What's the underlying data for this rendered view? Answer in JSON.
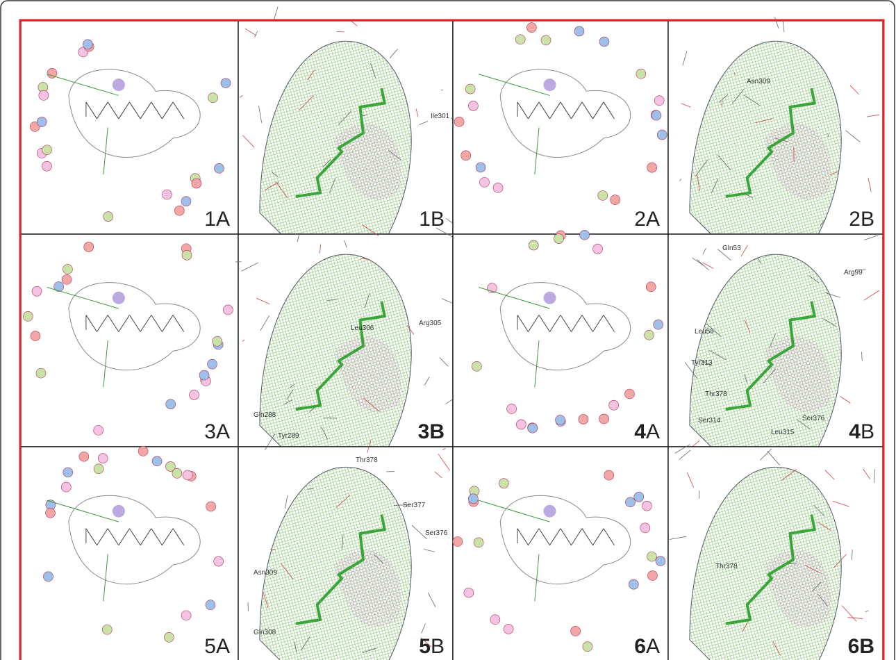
{
  "panels": [
    {
      "number": "1",
      "letter": "A"
    },
    {
      "number": "1",
      "letter": "B",
      "residues": [
        "Ile301"
      ]
    },
    {
      "number": "2",
      "letter": "A"
    },
    {
      "number": "2",
      "letter": "B",
      "residues": [
        "Asn309"
      ]
    },
    {
      "number": "3",
      "letter": "A"
    },
    {
      "number": "3",
      "letter": "B",
      "residues": [
        "Leu306",
        "Arg305",
        "Gln288",
        "Tyr289"
      ]
    },
    {
      "number": "4",
      "letter": "A"
    },
    {
      "number": "4",
      "letter": "B",
      "residues": [
        "Gln53",
        "Arg99",
        "Leu56",
        "Tyr313",
        "Thr378",
        "Ser314",
        "Leu315",
        "Ser376"
      ]
    },
    {
      "number": "5",
      "letter": "A"
    },
    {
      "number": "5",
      "letter": "B",
      "residues": [
        "Thr378",
        "Ser377",
        "Ser376",
        "Asn309",
        "Gln308"
      ]
    },
    {
      "number": "6",
      "letter": "A"
    },
    {
      "number": "6",
      "letter": "B",
      "residues": [
        "Thr378"
      ]
    }
  ]
}
